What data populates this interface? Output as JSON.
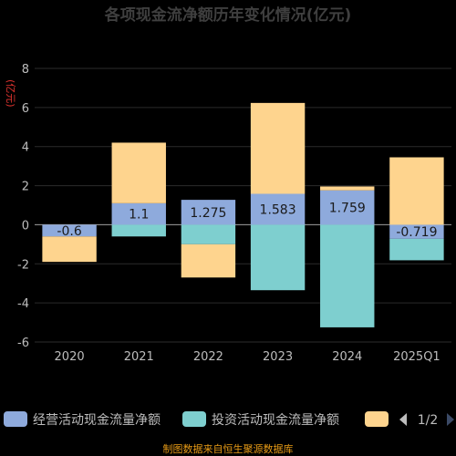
{
  "chart_data": {
    "type": "bar",
    "stacked": true,
    "title": "各项现金流净额历年变化情况(亿元)",
    "ylabel": "(亿元)",
    "categories": [
      "2020",
      "2021",
      "2022",
      "2023",
      "2024",
      "2025Q1"
    ],
    "ylim": [
      -6,
      8
    ],
    "yticks": [
      -6,
      -4,
      -2,
      0,
      2,
      4,
      6,
      8
    ],
    "grid": true,
    "series": [
      {
        "name": "经营活动现金流量净额",
        "color": "#8eaadc",
        "values": [
          -0.6,
          1.1,
          1.275,
          1.583,
          1.759,
          -0.719
        ],
        "labels": [
          "-0.6",
          "1.1",
          "1.275",
          "1.583",
          "1.759",
          "-0.719"
        ]
      },
      {
        "name": "投资活动现金流量净额",
        "color": "#7ecfcf",
        "values": [
          0,
          -0.6,
          -1.0,
          -3.35,
          -5.25,
          -1.1
        ]
      },
      {
        "name": "",
        "color": "#fed48e",
        "values": [
          -1.3,
          3.1,
          -1.7,
          4.65,
          0.2,
          3.45
        ]
      }
    ],
    "legend_position": "bottom",
    "legend_pager": "1/2"
  },
  "footer": "制图数据来自恒生聚源数据库"
}
